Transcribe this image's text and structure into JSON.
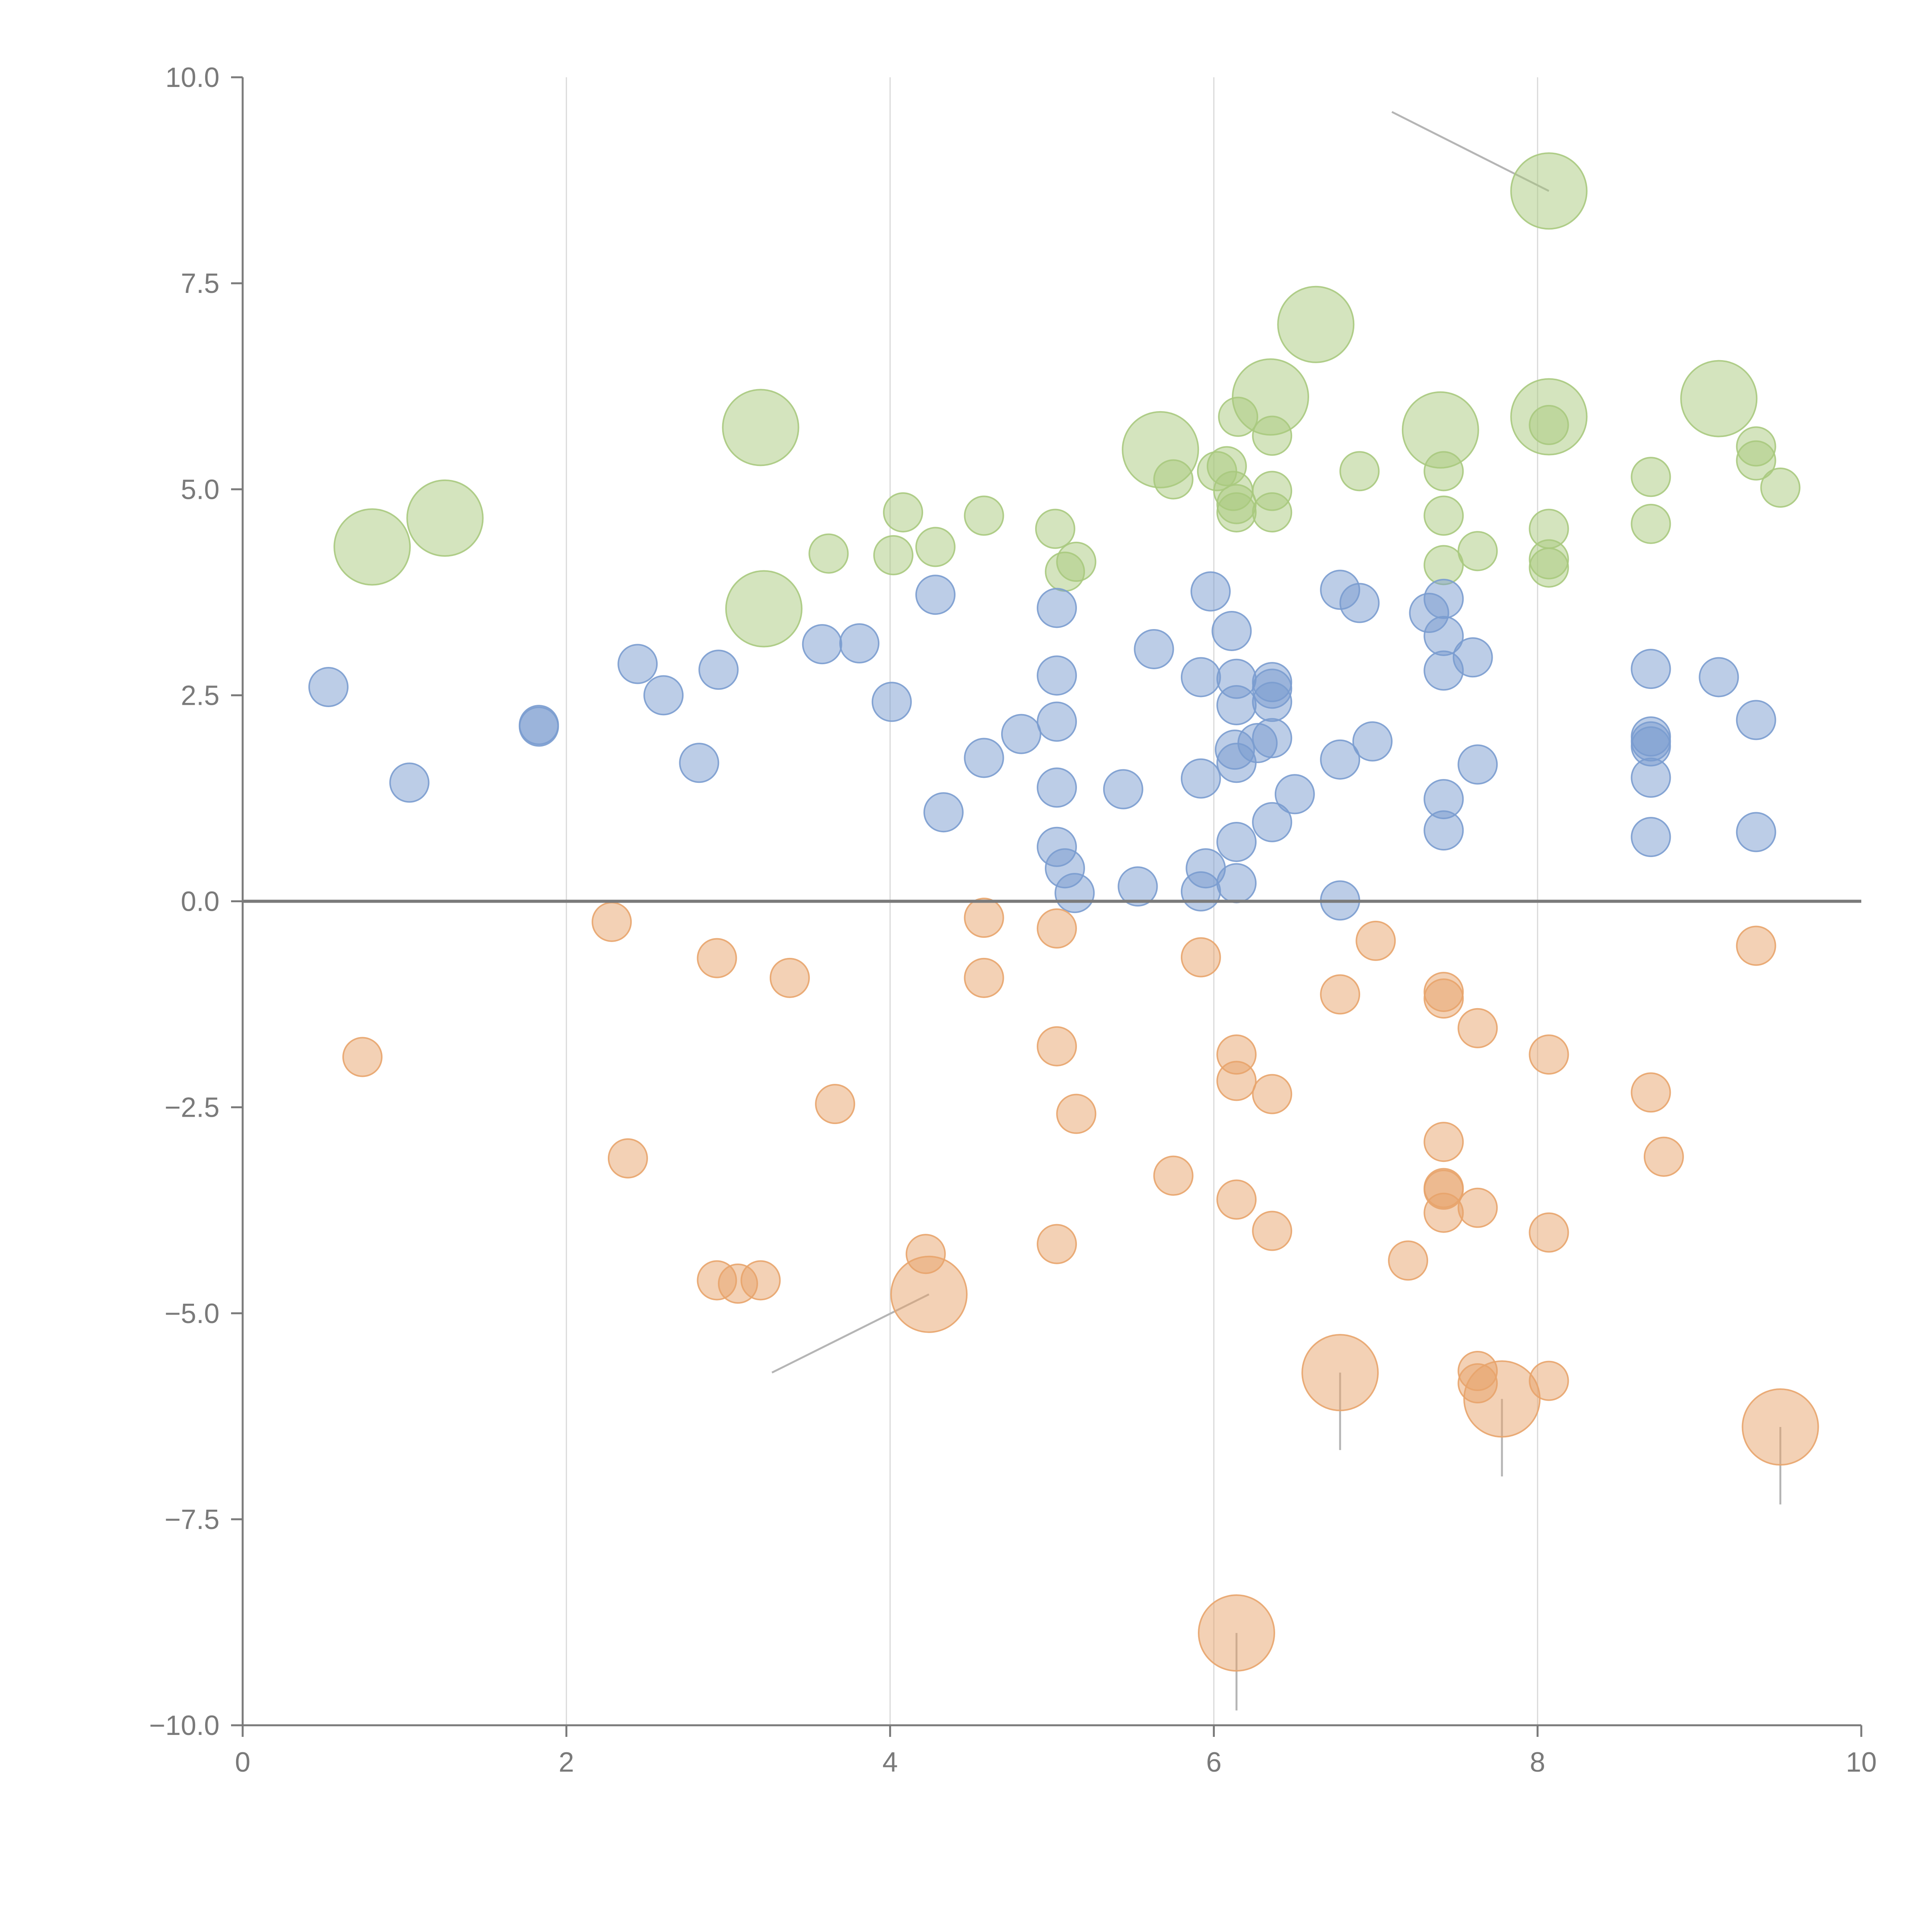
{
  "chart_data": {
    "type": "scatter",
    "title": "",
    "xlabel": "",
    "ylabel": "",
    "xlim": [
      0,
      10
    ],
    "ylim": [
      -10,
      10
    ],
    "grid": "vertical",
    "x_ticks": [
      "0",
      "2",
      "4",
      "6",
      "8",
      "10"
    ],
    "y_ticks": [
      "10.0",
      "7.5",
      "5.0",
      "2.5",
      "0.0",
      "−2.5",
      "−5.0",
      "−7.5",
      "−10.0"
    ],
    "colors": {
      "green": "#a9c97e",
      "blue": "#7a9ccf",
      "orange": "#e8a46c",
      "axis": "#7a7a7a",
      "grid": "#d9d9d9",
      "leader": "#b5b5b5"
    },
    "series": [
      {
        "name": "green",
        "color": "#a9c97e",
        "points": [
          {
            "x": 0.8,
            "y": 4.3,
            "r": 2.5
          },
          {
            "x": 1.25,
            "y": 4.65,
            "r": 2.5
          },
          {
            "x": 3.2,
            "y": 5.75,
            "r": 2.5
          },
          {
            "x": 3.22,
            "y": 3.55,
            "r": 2.5
          },
          {
            "x": 3.62,
            "y": 4.22,
            "r": 1
          },
          {
            "x": 4.02,
            "y": 4.2,
            "r": 1
          },
          {
            "x": 4.08,
            "y": 4.72,
            "r": 1
          },
          {
            "x": 4.28,
            "y": 4.3,
            "r": 1
          },
          {
            "x": 4.58,
            "y": 4.68,
            "r": 1
          },
          {
            "x": 5.02,
            "y": 4.52,
            "r": 1
          },
          {
            "x": 5.08,
            "y": 4.0,
            "r": 1
          },
          {
            "x": 5.15,
            "y": 4.12,
            "r": 1
          },
          {
            "x": 5.67,
            "y": 5.48,
            "r": 2.5
          },
          {
            "x": 5.75,
            "y": 5.12,
            "r": 1
          },
          {
            "x": 6.02,
            "y": 5.22,
            "r": 1
          },
          {
            "x": 6.08,
            "y": 5.28,
            "r": 1
          },
          {
            "x": 6.12,
            "y": 4.98,
            "r": 1
          },
          {
            "x": 6.14,
            "y": 4.72,
            "r": 1
          },
          {
            "x": 6.14,
            "y": 4.82,
            "r": 1
          },
          {
            "x": 6.15,
            "y": 5.88,
            "r": 1
          },
          {
            "x": 6.35,
            "y": 6.12,
            "r": 2.5
          },
          {
            "x": 6.36,
            "y": 5.65,
            "r": 1
          },
          {
            "x": 6.36,
            "y": 4.98,
            "r": 1
          },
          {
            "x": 6.36,
            "y": 4.72,
            "r": 1
          },
          {
            "x": 6.63,
            "y": 7.0,
            "r": 2.5
          },
          {
            "x": 6.9,
            "y": 5.22,
            "r": 1
          },
          {
            "x": 7.4,
            "y": 5.72,
            "r": 2.5
          },
          {
            "x": 7.42,
            "y": 5.22,
            "r": 1
          },
          {
            "x": 7.42,
            "y": 4.68,
            "r": 1
          },
          {
            "x": 7.42,
            "y": 4.08,
            "r": 1
          },
          {
            "x": 7.63,
            "y": 4.25,
            "r": 1
          },
          {
            "x": 8.07,
            "y": 8.62,
            "r": 2.5
          },
          {
            "x": 8.07,
            "y": 5.88,
            "r": 2.5
          },
          {
            "x": 8.07,
            "y": 5.78,
            "r": 1
          },
          {
            "x": 8.07,
            "y": 4.52,
            "r": 1
          },
          {
            "x": 8.07,
            "y": 4.15,
            "r": 1
          },
          {
            "x": 8.07,
            "y": 4.05,
            "r": 1
          },
          {
            "x": 8.7,
            "y": 5.15,
            "r": 1
          },
          {
            "x": 8.7,
            "y": 4.58,
            "r": 1
          },
          {
            "x": 9.12,
            "y": 6.1,
            "r": 2.5
          },
          {
            "x": 9.35,
            "y": 5.52,
            "r": 1
          },
          {
            "x": 9.35,
            "y": 5.35,
            "r": 1
          },
          {
            "x": 9.5,
            "y": 5.02,
            "r": 1
          }
        ]
      },
      {
        "name": "blue",
        "color": "#7a9ccf",
        "points": [
          {
            "x": 0.53,
            "y": 2.6,
            "r": 1
          },
          {
            "x": 1.03,
            "y": 1.44,
            "r": 1
          },
          {
            "x": 1.83,
            "y": 2.14,
            "r": 1
          },
          {
            "x": 1.83,
            "y": 2.12,
            "r": 1
          },
          {
            "x": 2.44,
            "y": 2.88,
            "r": 1
          },
          {
            "x": 2.6,
            "y": 2.5,
            "r": 1
          },
          {
            "x": 2.82,
            "y": 1.68,
            "r": 1
          },
          {
            "x": 2.94,
            "y": 2.81,
            "r": 1
          },
          {
            "x": 3.58,
            "y": 3.12,
            "r": 1
          },
          {
            "x": 3.81,
            "y": 3.13,
            "r": 1
          },
          {
            "x": 4.01,
            "y": 2.42,
            "r": 1
          },
          {
            "x": 4.28,
            "y": 3.72,
            "r": 1
          },
          {
            "x": 4.33,
            "y": 1.08,
            "r": 1
          },
          {
            "x": 4.58,
            "y": 1.74,
            "r": 1
          },
          {
            "x": 4.81,
            "y": 2.03,
            "r": 1
          },
          {
            "x": 5.03,
            "y": 3.56,
            "r": 1
          },
          {
            "x": 5.03,
            "y": 2.74,
            "r": 1
          },
          {
            "x": 5.03,
            "y": 2.18,
            "r": 1
          },
          {
            "x": 5.03,
            "y": 1.38,
            "r": 1
          },
          {
            "x": 5.03,
            "y": 0.66,
            "r": 1
          },
          {
            "x": 5.08,
            "y": 0.4,
            "r": 1
          },
          {
            "x": 5.14,
            "y": 0.1,
            "r": 1
          },
          {
            "x": 5.44,
            "y": 1.36,
            "r": 1
          },
          {
            "x": 5.53,
            "y": 0.18,
            "r": 1
          },
          {
            "x": 5.63,
            "y": 3.06,
            "r": 1
          },
          {
            "x": 5.92,
            "y": 2.72,
            "r": 1
          },
          {
            "x": 5.92,
            "y": 1.49,
            "r": 1
          },
          {
            "x": 5.92,
            "y": 0.12,
            "r": 1
          },
          {
            "x": 5.95,
            "y": 0.4,
            "r": 1
          },
          {
            "x": 5.98,
            "y": 3.76,
            "r": 1
          },
          {
            "x": 6.11,
            "y": 3.28,
            "r": 1
          },
          {
            "x": 6.13,
            "y": 1.84,
            "r": 1
          },
          {
            "x": 6.14,
            "y": 2.7,
            "r": 1
          },
          {
            "x": 6.14,
            "y": 2.38,
            "r": 1
          },
          {
            "x": 6.14,
            "y": 1.68,
            "r": 1
          },
          {
            "x": 6.14,
            "y": 0.72,
            "r": 1
          },
          {
            "x": 6.14,
            "y": 0.22,
            "r": 1
          },
          {
            "x": 6.27,
            "y": 1.92,
            "r": 1
          },
          {
            "x": 6.36,
            "y": 2.66,
            "r": 1
          },
          {
            "x": 6.36,
            "y": 2.58,
            "r": 1
          },
          {
            "x": 6.36,
            "y": 2.42,
            "r": 1
          },
          {
            "x": 6.36,
            "y": 1.98,
            "r": 1
          },
          {
            "x": 6.36,
            "y": 0.96,
            "r": 1
          },
          {
            "x": 6.5,
            "y": 1.3,
            "r": 1
          },
          {
            "x": 6.78,
            "y": 3.78,
            "r": 1
          },
          {
            "x": 6.78,
            "y": 1.72,
            "r": 1
          },
          {
            "x": 6.78,
            "y": 0.01,
            "r": 1
          },
          {
            "x": 6.9,
            "y": 3.62,
            "r": 1
          },
          {
            "x": 6.98,
            "y": 1.94,
            "r": 1
          },
          {
            "x": 7.33,
            "y": 3.5,
            "r": 1
          },
          {
            "x": 7.42,
            "y": 3.67,
            "r": 1
          },
          {
            "x": 7.42,
            "y": 3.22,
            "r": 1
          },
          {
            "x": 7.42,
            "y": 2.8,
            "r": 1
          },
          {
            "x": 7.42,
            "y": 1.24,
            "r": 1
          },
          {
            "x": 7.42,
            "y": 0.86,
            "r": 1
          },
          {
            "x": 7.6,
            "y": 2.96,
            "r": 1
          },
          {
            "x": 7.63,
            "y": 1.66,
            "r": 1
          },
          {
            "x": 8.7,
            "y": 2.82,
            "r": 1
          },
          {
            "x": 8.7,
            "y": 2.0,
            "r": 1
          },
          {
            "x": 8.7,
            "y": 1.94,
            "r": 1
          },
          {
            "x": 8.7,
            "y": 1.88,
            "r": 1
          },
          {
            "x": 8.7,
            "y": 1.5,
            "r": 1
          },
          {
            "x": 8.7,
            "y": 0.78,
            "r": 1
          },
          {
            "x": 9.12,
            "y": 2.72,
            "r": 1
          },
          {
            "x": 9.35,
            "y": 2.2,
            "r": 1
          },
          {
            "x": 9.35,
            "y": 0.84,
            "r": 1
          }
        ]
      },
      {
        "name": "orange",
        "color": "#e8a46c",
        "points": [
          {
            "x": 0.74,
            "y": -1.89,
            "r": 1
          },
          {
            "x": 2.28,
            "y": -0.25,
            "r": 1
          },
          {
            "x": 2.38,
            "y": -3.12,
            "r": 1
          },
          {
            "x": 2.93,
            "y": -0.69,
            "r": 1
          },
          {
            "x": 2.93,
            "y": -4.6,
            "r": 1
          },
          {
            "x": 3.06,
            "y": -4.64,
            "r": 1
          },
          {
            "x": 3.2,
            "y": -4.6,
            "r": 1
          },
          {
            "x": 3.38,
            "y": -0.93,
            "r": 1
          },
          {
            "x": 3.66,
            "y": -2.46,
            "r": 1
          },
          {
            "x": 4.22,
            "y": -4.28,
            "r": 1
          },
          {
            "x": 4.24,
            "y": -4.77,
            "r": 2.5
          },
          {
            "x": 4.58,
            "y": -0.2,
            "r": 1
          },
          {
            "x": 4.58,
            "y": -0.93,
            "r": 1
          },
          {
            "x": 5.03,
            "y": -0.33,
            "r": 1
          },
          {
            "x": 5.03,
            "y": -1.76,
            "r": 1
          },
          {
            "x": 5.03,
            "y": -4.16,
            "r": 1
          },
          {
            "x": 5.15,
            "y": -2.58,
            "r": 1
          },
          {
            "x": 5.75,
            "y": -3.33,
            "r": 1
          },
          {
            "x": 5.92,
            "y": -0.68,
            "r": 1
          },
          {
            "x": 6.14,
            "y": -1.86,
            "r": 1
          },
          {
            "x": 6.14,
            "y": -2.18,
            "r": 1
          },
          {
            "x": 6.14,
            "y": -3.62,
            "r": 1
          },
          {
            "x": 6.14,
            "y": -8.88,
            "r": 2.5
          },
          {
            "x": 6.36,
            "y": -2.34,
            "r": 1
          },
          {
            "x": 6.36,
            "y": -4.0,
            "r": 1
          },
          {
            "x": 6.78,
            "y": -1.13,
            "r": 1
          },
          {
            "x": 6.78,
            "y": -5.72,
            "r": 2.5
          },
          {
            "x": 7.0,
            "y": -0.48,
            "r": 1
          },
          {
            "x": 7.2,
            "y": -4.36,
            "r": 1
          },
          {
            "x": 7.42,
            "y": -1.1,
            "r": 1
          },
          {
            "x": 7.42,
            "y": -1.18,
            "r": 1
          },
          {
            "x": 7.42,
            "y": -2.92,
            "r": 1
          },
          {
            "x": 7.42,
            "y": -3.5,
            "r": 1
          },
          {
            "x": 7.42,
            "y": -3.48,
            "r": 1
          },
          {
            "x": 7.42,
            "y": -3.78,
            "r": 1
          },
          {
            "x": 7.63,
            "y": -1.54,
            "r": 1
          },
          {
            "x": 7.63,
            "y": -3.72,
            "r": 1
          },
          {
            "x": 7.63,
            "y": -5.7,
            "r": 1
          },
          {
            "x": 7.63,
            "y": -5.85,
            "r": 1
          },
          {
            "x": 7.78,
            "y": -6.04,
            "r": 2.5
          },
          {
            "x": 8.07,
            "y": -1.86,
            "r": 1
          },
          {
            "x": 8.07,
            "y": -4.02,
            "r": 1
          },
          {
            "x": 8.07,
            "y": -5.82,
            "r": 1
          },
          {
            "x": 8.7,
            "y": -2.32,
            "r": 1
          },
          {
            "x": 8.78,
            "y": -3.1,
            "r": 1
          },
          {
            "x": 9.35,
            "y": -0.54,
            "r": 1
          },
          {
            "x": 9.5,
            "y": -6.38,
            "r": 2.5
          }
        ]
      }
    ],
    "leader_lines": [
      {
        "x1": 0.78,
        "y1": 4.36,
        "x2": 0.8,
        "y2": 4.3
      },
      {
        "x1": 1.27,
        "y1": 4.67,
        "x2": 1.25,
        "y2": 4.65
      },
      {
        "x1": 3.22,
        "y1": 5.77,
        "x2": 3.2,
        "y2": 5.75
      },
      {
        "x1": 3.24,
        "y1": 3.55,
        "x2": 3.22,
        "y2": 3.55
      },
      {
        "x1": 5.65,
        "y1": 5.5,
        "x2": 5.67,
        "y2": 5.48
      },
      {
        "x1": 6.37,
        "y1": 6.1,
        "x2": 6.35,
        "y2": 6.12
      },
      {
        "x1": 6.65,
        "y1": 7.02,
        "x2": 6.63,
        "y2": 7.0
      },
      {
        "x1": 7.38,
        "y1": 5.75,
        "x2": 7.4,
        "y2": 5.72
      },
      {
        "x1": 8.1,
        "y1": 5.86,
        "x2": 8.07,
        "y2": 5.88
      },
      {
        "x1": 9.14,
        "y1": 6.12,
        "x2": 9.12,
        "y2": 6.1
      },
      {
        "x1": 7.1,
        "y1": 9.58,
        "x2": 8.07,
        "y2": 8.62
      },
      {
        "x1": 3.27,
        "y1": -5.72,
        "x2": 4.24,
        "y2": -4.77
      },
      {
        "x1": 6.78,
        "y1": -6.66,
        "x2": 6.78,
        "y2": -5.72
      },
      {
        "x1": 7.78,
        "y1": -6.98,
        "x2": 7.78,
        "y2": -6.04
      },
      {
        "x1": 9.5,
        "y1": -7.32,
        "x2": 9.5,
        "y2": -6.38
      },
      {
        "x1": 6.14,
        "y1": -9.82,
        "x2": 6.14,
        "y2": -8.88
      }
    ]
  }
}
